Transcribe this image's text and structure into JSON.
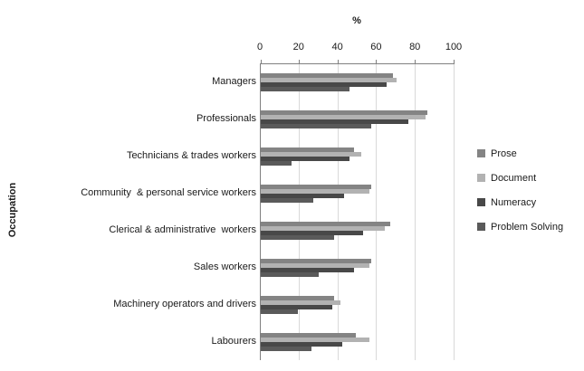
{
  "chart_data": {
    "type": "bar",
    "orientation": "horizontal",
    "title": "",
    "xlabel": "%",
    "ylabel": "Occupation",
    "xlim": [
      0,
      100
    ],
    "x_ticks": [
      0,
      20,
      40,
      60,
      80,
      100
    ],
    "grid": true,
    "legend_position": "right",
    "axis_color": "#808080",
    "gridline_color": "#d9d9d9",
    "categories": [
      "Managers",
      "Professionals",
      "Technicians & trades workers",
      "Community  & personal service workers",
      "Clerical & administrative  workers",
      "Sales workers",
      "Machinery operators and drivers",
      "Labourers"
    ],
    "series": [
      {
        "name": "Prose",
        "color": "#848484",
        "values": [
          68,
          86,
          48,
          57,
          67,
          57,
          38,
          49
        ]
      },
      {
        "name": "Document",
        "color": "#b2b2b2",
        "values": [
          70,
          85,
          52,
          56,
          64,
          56,
          41,
          56
        ]
      },
      {
        "name": "Numeracy",
        "color": "#484848",
        "values": [
          65,
          76,
          46,
          43,
          53,
          48,
          37,
          42
        ]
      },
      {
        "name": "Problem Solving",
        "color": "#5a5a5a",
        "values": [
          46,
          57,
          16,
          27,
          38,
          30,
          19,
          26
        ]
      }
    ]
  }
}
